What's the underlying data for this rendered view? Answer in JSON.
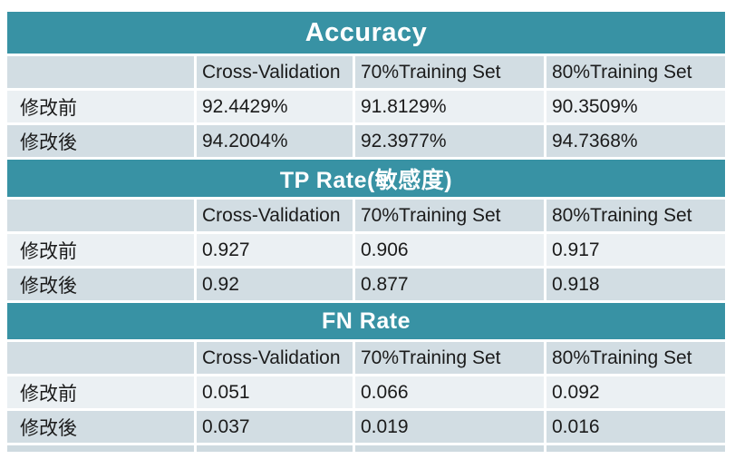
{
  "page": {
    "background_color": "#ffffff",
    "accent_color": "#3892a4",
    "row_dark_color": "#d2dde3",
    "row_light_color": "#ebf0f3",
    "text_color": "#1b1b1b",
    "title_text_color": "#ffffff"
  },
  "table": {
    "columns": [
      "",
      "Cross-Validation",
      "70%Training Set",
      "80%Training Set"
    ],
    "sections": [
      {
        "title": "Accuracy",
        "rows": [
          {
            "label": "修改前",
            "values": [
              "92.4429%",
              "91.8129%",
              "90.3509%"
            ]
          },
          {
            "label": "修改後",
            "values": [
              "94.2004%",
              "92.3977%",
              "94.7368%"
            ]
          }
        ]
      },
      {
        "title": "TP Rate(敏感度)",
        "rows": [
          {
            "label": "修改前",
            "values": [
              "0.927",
              "0.906",
              "0.917"
            ]
          },
          {
            "label": "修改後",
            "values": [
              "0.92",
              "0.877",
              "0.918"
            ]
          }
        ]
      },
      {
        "title": "FN Rate",
        "rows": [
          {
            "label": "修改前",
            "values": [
              "0.051",
              "0.066",
              "0.092"
            ]
          },
          {
            "label": "修改後",
            "values": [
              "0.037",
              "0.019",
              "0.016"
            ]
          }
        ]
      }
    ]
  },
  "chart_data": [
    {
      "type": "table",
      "title": "Accuracy",
      "columns": [
        "",
        "Cross-Validation",
        "70%Training Set",
        "80%Training Set"
      ],
      "rows": [
        [
          "修改前",
          "92.4429%",
          "91.8129%",
          "90.3509%"
        ],
        [
          "修改後",
          "94.2004%",
          "92.3977%",
          "94.7368%"
        ]
      ]
    },
    {
      "type": "table",
      "title": "TP Rate(敏感度)",
      "columns": [
        "",
        "Cross-Validation",
        "70%Training Set",
        "80%Training Set"
      ],
      "rows": [
        [
          "修改前",
          "0.927",
          "0.906",
          "0.917"
        ],
        [
          "修改後",
          "0.92",
          "0.877",
          "0.918"
        ]
      ]
    },
    {
      "type": "table",
      "title": "FN Rate",
      "columns": [
        "",
        "Cross-Validation",
        "70%Training Set",
        "80%Training Set"
      ],
      "rows": [
        [
          "修改前",
          "0.051",
          "0.066",
          "0.092"
        ],
        [
          "修改後",
          "0.037",
          "0.019",
          "0.016"
        ]
      ]
    }
  ]
}
